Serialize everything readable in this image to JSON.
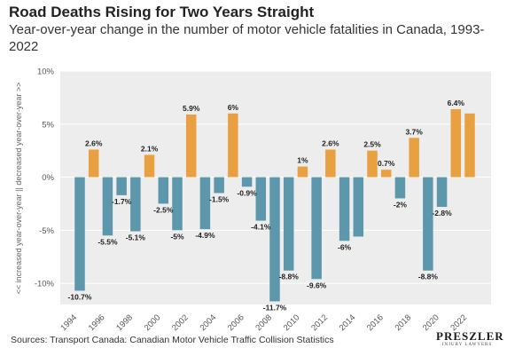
{
  "title": "Road Deaths Rising for Two Years Straight",
  "subtitle": "Year-over-year change in the number of motor vehicle fatalities in Canada, 1993-2022",
  "source": "Sources: Transport Canada: Canadian Motor Vehicle Traffic Collision Statistics",
  "logo": {
    "main": "PRESZLER",
    "sub": "INJURY LAWYERS"
  },
  "colors": {
    "increase": "#e8a040",
    "decrease": "#5d97ab",
    "plot_background": "#ededed"
  },
  "chart_data": {
    "type": "bar",
    "title": "Road Deaths Rising for Two Years Straight",
    "ylabel": "<< increased year-over-year || decreased year-over-year >>",
    "ylim": [
      -12,
      10
    ],
    "yticks": [
      10,
      5,
      0,
      -5,
      -10
    ],
    "ytick_labels": [
      "10%",
      "5%",
      "0%",
      "-5%",
      "-10%"
    ],
    "grid": true,
    "categories": [
      "1994",
      "1995",
      "1996",
      "1997",
      "1998",
      "1999",
      "2000",
      "2001",
      "2002",
      "2003",
      "2004",
      "2005",
      "2006",
      "2007",
      "2008",
      "2009",
      "2010",
      "2011",
      "2012",
      "2013",
      "2014",
      "2015",
      "2016",
      "2017",
      "2018",
      "2019",
      "2020",
      "2021",
      "2022"
    ],
    "values": [
      -10.7,
      2.6,
      -5.5,
      -1.7,
      -5.1,
      2.1,
      -2.5,
      -5.0,
      5.9,
      -4.9,
      -1.5,
      6.0,
      -0.9,
      -4.1,
      -11.7,
      -8.8,
      1.0,
      -9.6,
      2.6,
      -6.0,
      -5.6,
      2.5,
      0.7,
      -2.0,
      3.7,
      -8.8,
      -2.8,
      6.4,
      6.0
    ],
    "data_labels": [
      "-10.7%",
      "2.6%",
      "-5.5%",
      "-1.7%",
      "-5.1%",
      "2.1%",
      "-2.5%",
      "-5%",
      "5.9%",
      "-4.9%",
      "-1.5%",
      "6%",
      "-0.9%",
      "-4.1%",
      "-11.7%",
      "-8.8%",
      "1%",
      "-9.6%",
      "2.6%",
      "-6%",
      "",
      "2.5%",
      "0.7%",
      "-2%",
      "3.7%",
      "-8.8%",
      "-2.8%",
      "6.4%",
      ""
    ],
    "xtick_labels": [
      "1994",
      "",
      "1996",
      "",
      "1998",
      "",
      "2000",
      "",
      "2002",
      "",
      "2004",
      "",
      "2006",
      "",
      "2008",
      "",
      "2010",
      "",
      "2012",
      "",
      "2014",
      "",
      "2016",
      "",
      "2018",
      "",
      "2020",
      "",
      "2022"
    ]
  }
}
